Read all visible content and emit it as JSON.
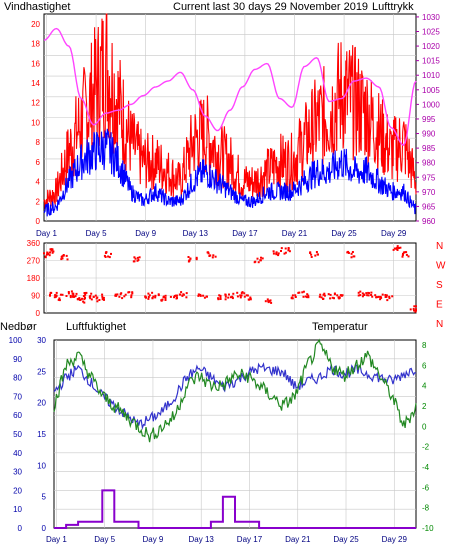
{
  "header": {
    "left_label": "Vindhastighet",
    "center_label": "Current last 30 days 29 November 2019",
    "right_label": "Lufttrykk"
  },
  "panel3_header": {
    "rain_label": "Nedbør",
    "humidity_label": "Luftfuktighet",
    "temp_label": "Temperatur"
  },
  "colors": {
    "wind_gust": "#ff0000",
    "wind_avg": "#0000ff",
    "pressure": "#ff44ff",
    "wind_dir": "#ff0000",
    "humidity": "#3333cc",
    "temperature": "#228822",
    "rain": "#8800cc",
    "grid": "#c8c8c8",
    "left_axis": "#ff0000",
    "right_axis": "#aa00aa",
    "temp_axis": "#008800",
    "humidity_axis": "#0000aa",
    "rain_axis": "#0000aa"
  },
  "x_day_labels": [
    "Day 1",
    "Day 5",
    "Day 9",
    "Day 13",
    "Day 17",
    "Day 21",
    "Day 25",
    "Day 29"
  ],
  "wind_ticks": [
    "0",
    "2",
    "4",
    "6",
    "8",
    "10",
    "12",
    "14",
    "16",
    "18",
    "20"
  ],
  "pressure_ticks": [
    "960",
    "965",
    "970",
    "975",
    "980",
    "985",
    "990",
    "995",
    "1000",
    "1005",
    "1010",
    "1015",
    "1020",
    "1025",
    "1030"
  ],
  "dir_ticks": [
    "0",
    "90",
    "180",
    "270",
    "360"
  ],
  "compass_labels": [
    "N",
    "W",
    "S",
    "E",
    "N"
  ],
  "humidity_ticks": [
    "0",
    "10",
    "20",
    "30",
    "40",
    "50",
    "60",
    "70",
    "80",
    "90",
    "100"
  ],
  "rain_ticks": [
    "0",
    "5",
    "10",
    "15",
    "20",
    "25",
    "30"
  ],
  "temp_ticks": [
    "-10",
    "-8",
    "-6",
    "-4",
    "-2",
    "0",
    "2",
    "4",
    "6",
    "8"
  ],
  "chart_data": [
    {
      "type": "line",
      "title": "Current last 30 days 29 November 2019",
      "x": [
        0,
        1,
        2,
        3,
        4,
        5,
        6,
        7,
        8,
        9,
        10,
        11,
        12,
        13,
        14,
        15,
        16,
        17,
        18,
        19,
        20,
        21,
        22,
        23,
        24,
        25,
        26,
        27,
        28,
        29,
        30
      ],
      "xlim": [
        0,
        30
      ],
      "ylim": [
        0,
        21
      ],
      "ylabel": "Vindhastighet",
      "y2label": "Lufttrykk",
      "y2lim": [
        960,
        1031
      ],
      "series": [
        {
          "name": "Vindhastighet",
          "axis": "left",
          "values": [
            2,
            3,
            7,
            10,
            13,
            16,
            12,
            8,
            6,
            6,
            5,
            4,
            8,
            9,
            7,
            6,
            4,
            4,
            5,
            6,
            6,
            8,
            10,
            11,
            13,
            12,
            11,
            9,
            7,
            8,
            4
          ]
        },
        {
          "axis": "left",
          "values": [
            1,
            1.5,
            4,
            6,
            7,
            7.5,
            6,
            3,
            2,
            3,
            2,
            2,
            4,
            5,
            4,
            3,
            2,
            2,
            3,
            3,
            3,
            4,
            5,
            5,
            6,
            5,
            5,
            4,
            3,
            3,
            1
          ]
        },
        {
          "name": "Lufttrykk",
          "axis": "right",
          "values": [
            1022,
            1026,
            1020,
            1002,
            993,
            997,
            998,
            1000,
            1003,
            1006,
            1008,
            1011,
            1005,
            996,
            991,
            998,
            1006,
            1012,
            1014,
            1002,
            999,
            1013,
            1016,
            1001,
            1002,
            1008,
            1009,
            1006,
            992,
            986,
            1008
          ]
        }
      ]
    },
    {
      "type": "scatter",
      "ylabel": "wind direction",
      "ylim": [
        0,
        360
      ],
      "x": [
        0.2,
        0.5,
        0.8,
        1.2,
        1.6,
        2.1,
        2.5,
        3.0,
        3.5,
        4.0,
        4.6,
        5.2,
        6.0,
        6.8,
        7.5,
        8.3,
        9.0,
        9.8,
        10.5,
        11.3,
        12.0,
        12.8,
        13.5,
        14.3,
        15.0,
        15.8,
        16.5,
        17.3,
        18.0,
        18.8,
        19.5,
        20.3,
        21.0,
        21.8,
        22.5,
        23.3,
        24.0,
        24.8,
        25.5,
        26.3,
        27.0,
        27.8,
        28.5,
        29.2,
        29.8
      ],
      "values": [
        300,
        320,
        95,
        80,
        290,
        100,
        85,
        60,
        90,
        75,
        80,
        300,
        90,
        95,
        280,
        85,
        90,
        75,
        80,
        95,
        280,
        90,
        300,
        85,
        90,
        95,
        80,
        270,
        60,
        310,
        320,
        90,
        95,
        300,
        85,
        90,
        80,
        300,
        95,
        90,
        85,
        80,
        330,
        300,
        20
      ]
    },
    {
      "type": "line",
      "x": [
        0,
        1,
        2,
        3,
        4,
        5,
        6,
        7,
        8,
        9,
        10,
        11,
        12,
        13,
        14,
        15,
        16,
        17,
        18,
        19,
        20,
        21,
        22,
        23,
        24,
        25,
        26,
        27,
        28,
        29,
        30
      ],
      "xlim": [
        0,
        30
      ],
      "ylim": [
        0,
        100
      ],
      "ylabel": "Luftfuktighet",
      "y2label": "Temperatur",
      "y2lim": [
        -10,
        8.5
      ],
      "y3label": "Nedbør",
      "y3lim": [
        0,
        30
      ],
      "series": [
        {
          "name": "Luftfuktighet",
          "axis": "humidity",
          "values": [
            72,
            80,
            85,
            78,
            70,
            65,
            60,
            55,
            58,
            62,
            70,
            80,
            85,
            80,
            75,
            78,
            82,
            85,
            84,
            83,
            75,
            78,
            80,
            85,
            82,
            84,
            82,
            80,
            78,
            82,
            85
          ]
        },
        {
          "name": "Temperatur",
          "axis": "temp",
          "values": [
            2,
            6,
            7,
            5,
            3,
            2,
            1,
            0,
            -1,
            0,
            1,
            4,
            5,
            4,
            4,
            5,
            5,
            4,
            3,
            2,
            3,
            6,
            8,
            6,
            5,
            6,
            7,
            5,
            3,
            0,
            2
          ]
        },
        {
          "name": "Nedbør",
          "axis": "rain",
          "values": [
            0,
            0.5,
            1,
            1,
            6,
            1,
            1,
            0,
            0,
            0,
            0,
            0,
            0,
            1,
            5,
            1,
            1,
            0,
            0,
            0,
            0,
            0,
            0,
            0,
            0,
            0,
            0,
            0,
            0,
            0,
            0
          ]
        }
      ]
    }
  ]
}
